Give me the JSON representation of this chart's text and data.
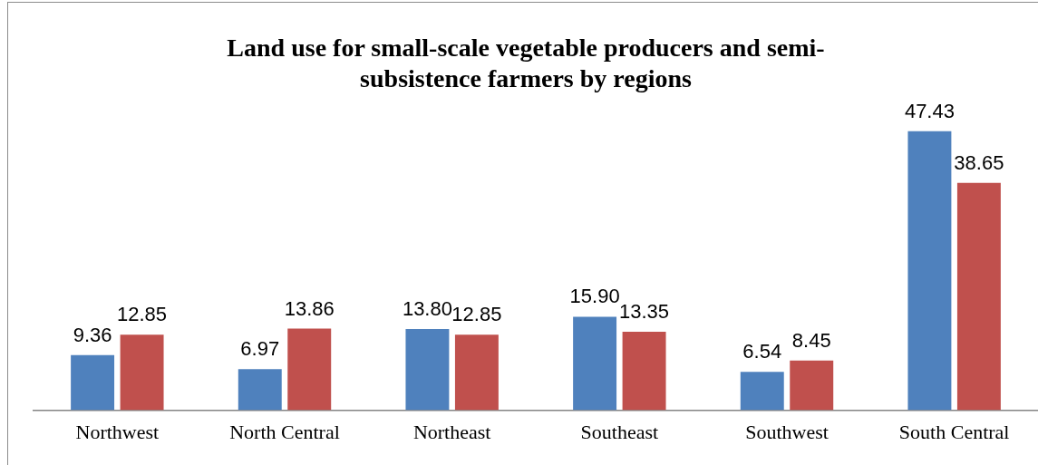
{
  "chart_data": {
    "type": "bar",
    "title": "Land use for small-scale vegetable producers and semi-subsistence farmers by regions",
    "categories": [
      "Northwest",
      "North Central",
      "Northeast",
      "Southeast",
      "Southwest",
      "South Central"
    ],
    "series": [
      {
        "color": "#4f81bd",
        "values": [
          9.36,
          6.97,
          13.8,
          15.9,
          6.54,
          47.43
        ],
        "value_labels": [
          "9.36",
          "6.97",
          "13.80",
          "15.90",
          "6.54",
          "47.43"
        ]
      },
      {
        "color": "#c0504d",
        "values": [
          12.85,
          13.86,
          12.85,
          13.35,
          8.45,
          38.65
        ],
        "value_labels": [
          "12.85",
          "13.86",
          "12.85",
          "13.35",
          "8.45",
          "38.65"
        ]
      }
    ]
  }
}
